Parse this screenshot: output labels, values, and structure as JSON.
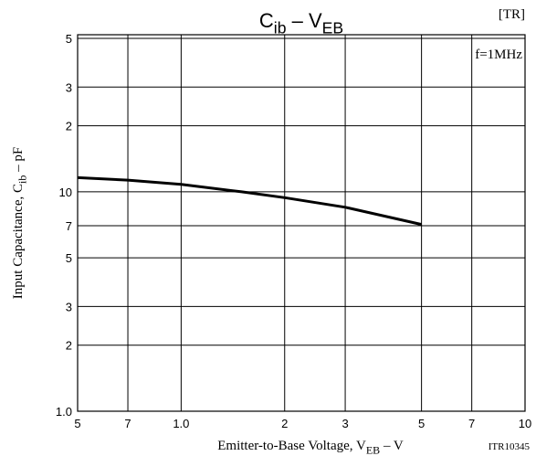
{
  "chart_data": {
    "type": "line",
    "title": [
      "C",
      "ib",
      " – V",
      "EB"
    ],
    "x_label": [
      "Emitter-to-Base Voltage, V",
      "EB",
      " – V"
    ],
    "y_label": [
      "Input Capacitance, C",
      "ib",
      " – pF"
    ],
    "annotations": [
      "[TR]",
      "f=1MHz",
      "ITR10345"
    ],
    "log_x": true,
    "log_y": true,
    "grid": true,
    "xlim": [
      0.5,
      10
    ],
    "ylim": [
      1,
      50
    ],
    "xticks": [
      {
        "value": 0.5,
        "label": "5"
      },
      {
        "value": 0.7,
        "label": "7"
      },
      {
        "value": 1,
        "label": "1.0"
      },
      2,
      3,
      5,
      7,
      10
    ],
    "yticks": [
      {
        "value": 1,
        "label": "1.0"
      },
      2,
      3,
      5,
      7,
      10,
      {
        "value": 20,
        "label": "2"
      },
      {
        "value": 30,
        "label": "3"
      },
      {
        "value": 50,
        "label": "5"
      }
    ],
    "series": [
      {
        "color": "#000000",
        "x": [
          0.5,
          0.7,
          1.0,
          1.5,
          2,
          3,
          5
        ],
        "values": [
          11.6,
          11.3,
          10.8,
          10,
          9.4,
          8.5,
          7.1
        ]
      }
    ]
  }
}
